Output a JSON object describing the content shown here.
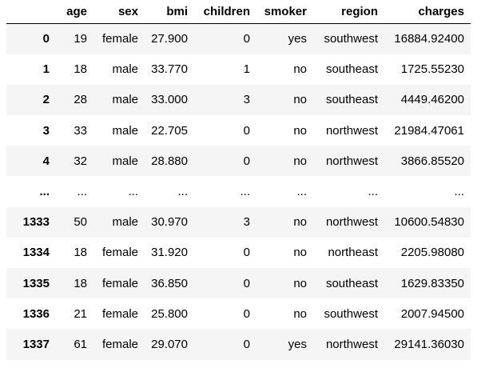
{
  "table": {
    "columns": [
      "",
      "age",
      "sex",
      "bmi",
      "children",
      "smoker",
      "region",
      "charges"
    ],
    "rows": [
      [
        "0",
        "19",
        "female",
        "27.900",
        "0",
        "yes",
        "southwest",
        "16884.92400"
      ],
      [
        "1",
        "18",
        "male",
        "33.770",
        "1",
        "no",
        "southeast",
        "1725.55230"
      ],
      [
        "2",
        "28",
        "male",
        "33.000",
        "3",
        "no",
        "southeast",
        "4449.46200"
      ],
      [
        "3",
        "33",
        "male",
        "22.705",
        "0",
        "no",
        "northwest",
        "21984.47061"
      ],
      [
        "4",
        "32",
        "male",
        "28.880",
        "0",
        "no",
        "northwest",
        "3866.85520"
      ],
      [
        "...",
        "...",
        "...",
        "...",
        "...",
        "...",
        "...",
        "..."
      ],
      [
        "1333",
        "50",
        "male",
        "30.970",
        "3",
        "no",
        "northwest",
        "10600.54830"
      ],
      [
        "1334",
        "18",
        "female",
        "31.920",
        "0",
        "no",
        "northeast",
        "2205.98080"
      ],
      [
        "1335",
        "18",
        "female",
        "36.850",
        "0",
        "no",
        "southeast",
        "1629.83350"
      ],
      [
        "1336",
        "21",
        "female",
        "25.800",
        "0",
        "no",
        "southwest",
        "2007.94500"
      ],
      [
        "1337",
        "61",
        "female",
        "29.070",
        "0",
        "yes",
        "northwest",
        "29141.36030"
      ]
    ]
  }
}
